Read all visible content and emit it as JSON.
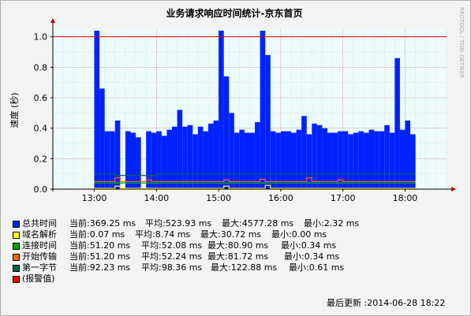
{
  "chart_data": {
    "type": "area",
    "title": "业务请求响应时间统计-京东首页",
    "ylabel": "速度 (秒)",
    "xlabel": "",
    "ylim": [
      0,
      1.05
    ],
    "yticks": [
      "0.0",
      "0.2",
      "0.4",
      "0.6",
      "0.8",
      "1.0"
    ],
    "ytick_values": [
      0,
      0.2,
      0.4,
      0.6,
      0.8,
      1.0
    ],
    "xtick_labels": [
      "13:00",
      "14:00",
      "15:00",
      "16:00",
      "17:00",
      "18:00"
    ],
    "xtick_values": [
      "13:00",
      "14:00",
      "15:00",
      "16:00",
      "17:00",
      "18:00"
    ],
    "xlim": [
      "12:20",
      "18:40"
    ],
    "threshold": 1.0,
    "grid": true,
    "series": [
      {
        "name": "总共时间",
        "color": "#0022ff",
        "style": "area",
        "points": [
          {
            "x": "13:00",
            "y": 1.04
          },
          {
            "x": "13:05",
            "y": 0.66
          },
          {
            "x": "13:10",
            "y": 0.38
          },
          {
            "x": "13:15",
            "y": 0.38
          },
          {
            "x": "13:20",
            "y": 0.45
          },
          {
            "x": "13:25",
            "y": 0.0
          },
          {
            "x": "13:30",
            "y": 0.38
          },
          {
            "x": "13:35",
            "y": 0.37
          },
          {
            "x": "13:40",
            "y": 0.34
          },
          {
            "x": "13:45",
            "y": 0.0
          },
          {
            "x": "13:50",
            "y": 0.38
          },
          {
            "x": "13:55",
            "y": 0.37
          },
          {
            "x": "14:00",
            "y": 0.38
          },
          {
            "x": "14:05",
            "y": 0.35
          },
          {
            "x": "14:10",
            "y": 0.39
          },
          {
            "x": "14:15",
            "y": 0.41
          },
          {
            "x": "14:20",
            "y": 0.52
          },
          {
            "x": "14:25",
            "y": 0.41
          },
          {
            "x": "14:30",
            "y": 0.42
          },
          {
            "x": "14:35",
            "y": 0.36
          },
          {
            "x": "14:40",
            "y": 0.41
          },
          {
            "x": "14:45",
            "y": 0.38
          },
          {
            "x": "14:50",
            "y": 0.43
          },
          {
            "x": "14:55",
            "y": 0.45
          },
          {
            "x": "15:00",
            "y": 1.04
          },
          {
            "x": "15:05",
            "y": 0.74
          },
          {
            "x": "15:10",
            "y": 0.5
          },
          {
            "x": "15:15",
            "y": 0.37
          },
          {
            "x": "15:20",
            "y": 0.39
          },
          {
            "x": "15:25",
            "y": 0.37
          },
          {
            "x": "15:30",
            "y": 0.37
          },
          {
            "x": "15:35",
            "y": 0.44
          },
          {
            "x": "15:40",
            "y": 1.04
          },
          {
            "x": "15:45",
            "y": 0.88
          },
          {
            "x": "15:50",
            "y": 0.38
          },
          {
            "x": "15:55",
            "y": 0.37
          },
          {
            "x": "16:00",
            "y": 0.38
          },
          {
            "x": "16:05",
            "y": 0.38
          },
          {
            "x": "16:10",
            "y": 0.37
          },
          {
            "x": "16:15",
            "y": 0.39
          },
          {
            "x": "16:20",
            "y": 0.48
          },
          {
            "x": "16:25",
            "y": 0.36
          },
          {
            "x": "16:30",
            "y": 0.43
          },
          {
            "x": "16:35",
            "y": 0.42
          },
          {
            "x": "16:40",
            "y": 0.4
          },
          {
            "x": "16:45",
            "y": 0.37
          },
          {
            "x": "16:50",
            "y": 0.37
          },
          {
            "x": "16:55",
            "y": 0.38
          },
          {
            "x": "17:00",
            "y": 0.38
          },
          {
            "x": "17:05",
            "y": 0.36
          },
          {
            "x": "17:10",
            "y": 0.37
          },
          {
            "x": "17:15",
            "y": 0.38
          },
          {
            "x": "17:20",
            "y": 0.37
          },
          {
            "x": "17:25",
            "y": 0.39
          },
          {
            "x": "17:30",
            "y": 0.38
          },
          {
            "x": "17:35",
            "y": 0.38
          },
          {
            "x": "17:40",
            "y": 0.42
          },
          {
            "x": "17:45",
            "y": 0.37
          },
          {
            "x": "17:50",
            "y": 0.86
          },
          {
            "x": "17:55",
            "y": 0.39
          },
          {
            "x": "18:00",
            "y": 0.45
          },
          {
            "x": "18:05",
            "y": 0.36
          }
        ]
      },
      {
        "name": "第一字节",
        "color": "#00664a",
        "style": "line",
        "points": [
          {
            "x": "13:00",
            "y": 0.1
          },
          {
            "x": "13:20",
            "y": 0.09
          },
          {
            "x": "14:00",
            "y": 0.1
          },
          {
            "x": "15:00",
            "y": 0.1
          },
          {
            "x": "15:40",
            "y": 0.1
          },
          {
            "x": "16:00",
            "y": 0.1
          },
          {
            "x": "17:00",
            "y": 0.1
          },
          {
            "x": "18:05",
            "y": 0.1
          }
        ]
      },
      {
        "name": "开始传输",
        "color": "#ff6600",
        "style": "line",
        "points": [
          {
            "x": "13:00",
            "y": 0.05
          },
          {
            "x": "13:15",
            "y": 0.05
          },
          {
            "x": "13:20",
            "y": 0.075
          },
          {
            "x": "13:25",
            "y": 0.05
          },
          {
            "x": "13:45",
            "y": 0.05
          },
          {
            "x": "13:50",
            "y": 0.06
          },
          {
            "x": "13:55",
            "y": 0.05
          },
          {
            "x": "15:00",
            "y": 0.05
          },
          {
            "x": "15:05",
            "y": 0.06
          },
          {
            "x": "15:10",
            "y": 0.05
          },
          {
            "x": "15:35",
            "y": 0.05
          },
          {
            "x": "15:40",
            "y": 0.065
          },
          {
            "x": "15:45",
            "y": 0.05
          },
          {
            "x": "16:20",
            "y": 0.05
          },
          {
            "x": "16:25",
            "y": 0.075
          },
          {
            "x": "16:30",
            "y": 0.05
          },
          {
            "x": "16:50",
            "y": 0.05
          },
          {
            "x": "16:55",
            "y": 0.06
          },
          {
            "x": "17:00",
            "y": 0.05
          },
          {
            "x": "18:05",
            "y": 0.05
          }
        ]
      },
      {
        "name": "连接时间",
        "color": "#00aa00",
        "style": "line",
        "points": [
          {
            "x": "13:00",
            "y": 0.04
          },
          {
            "x": "14:00",
            "y": 0.04
          },
          {
            "x": "15:00",
            "y": 0.04
          },
          {
            "x": "16:00",
            "y": 0.04
          },
          {
            "x": "17:00",
            "y": 0.04
          },
          {
            "x": "18:05",
            "y": 0.04
          }
        ]
      },
      {
        "name": "域名解析",
        "color": "#ffff00",
        "style": "line",
        "points": [
          {
            "x": "13:00",
            "y": 0.005
          },
          {
            "x": "13:15",
            "y": 0.005
          },
          {
            "x": "13:20",
            "y": 0.02
          },
          {
            "x": "13:25",
            "y": 0.005
          },
          {
            "x": "15:00",
            "y": 0.005
          },
          {
            "x": "15:05",
            "y": 0.02
          },
          {
            "x": "15:10",
            "y": 0.005
          },
          {
            "x": "15:40",
            "y": 0.005
          },
          {
            "x": "15:45",
            "y": 0.025
          },
          {
            "x": "15:50",
            "y": 0.005
          },
          {
            "x": "18:05",
            "y": 0.005
          }
        ]
      }
    ]
  },
  "legend": [
    {
      "name": "总共时间",
      "color": "#0022ff",
      "current": "当前:369.25 ms",
      "average": "平均:523.93 ms",
      "maximum": "最大:4577.28 ms",
      "minimum": "最小:2.32 ms"
    },
    {
      "name": "域名解析",
      "color": "#ffff00",
      "current": "当前:0.07 ms",
      "average": "平均:8.74 ms",
      "maximum": "最大:30.72 ms",
      "minimum": "最小:0.00 ms"
    },
    {
      "name": "连接时间",
      "color": "#00aa00",
      "current": "当前:51.20 ms",
      "average": "平均:52.08 ms",
      "maximum": "最大:80.90 ms",
      "minimum": "最小:0.34 ms"
    },
    {
      "name": "开始传输",
      "color": "#ff6600",
      "current": "当前:51.20 ms",
      "average": "平均:52.24 ms",
      "maximum": "最大:81.72 ms",
      "minimum": "最小:0.34 ms"
    },
    {
      "name": "第一字节",
      "color": "#00664a",
      "current": "当前:92.23 ms",
      "average": "平均:98.36 ms",
      "maximum": "最大:122.88 ms",
      "minimum": "最小:0.61 ms"
    },
    {
      "name": "(报警值)",
      "color": "#ff0000",
      "current": "",
      "average": "",
      "maximum": "",
      "minimum": ""
    }
  ],
  "last_update": "最后更新 :2014-06-28 18:22",
  "watermark": "RRDTOOL / TOBI OETIKER"
}
